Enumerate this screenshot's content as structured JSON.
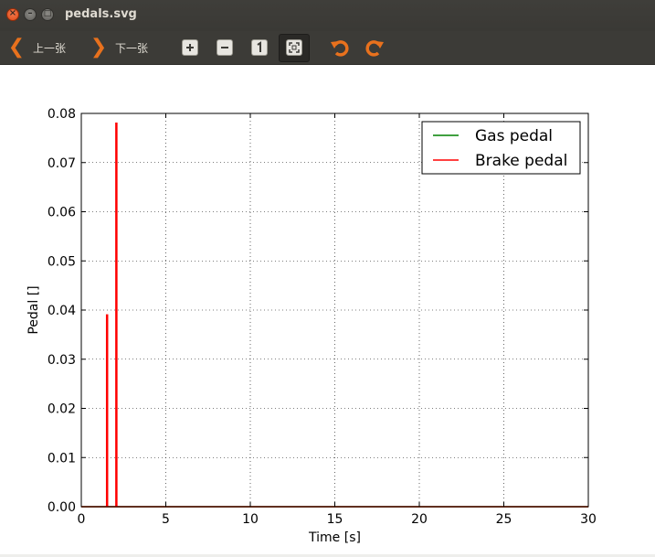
{
  "window": {
    "title": "pedals.svg",
    "close_glyph": "×",
    "minimize_glyph": "–",
    "maximize_glyph": "□"
  },
  "toolbar": {
    "prev_label": "上一张",
    "next_label": "下一张",
    "prev_icon": "chevron-left-icon",
    "next_icon": "chevron-right-icon",
    "buttons": [
      "zoom-in-icon",
      "zoom-out-icon",
      "original-size-icon",
      "best-fit-icon",
      "rotate-left-icon",
      "rotate-right-icon"
    ],
    "accent_color": "#e8711d"
  },
  "chart_data": {
    "type": "line",
    "xlabel": "Time [s]",
    "ylabel": "Pedal []",
    "xlim": [
      0,
      30
    ],
    "ylim": [
      0.0,
      0.08
    ],
    "x_ticks": [
      "0",
      "5",
      "10",
      "15",
      "20",
      "25",
      "30"
    ],
    "x_tick_values": [
      0,
      5,
      10,
      15,
      20,
      25,
      30
    ],
    "y_ticks": [
      "0.00",
      "0.01",
      "0.02",
      "0.03",
      "0.04",
      "0.05",
      "0.06",
      "0.07",
      "0.08"
    ],
    "y_tick_values": [
      0.0,
      0.01,
      0.02,
      0.03,
      0.04,
      0.05,
      0.06,
      0.07,
      0.08
    ],
    "grid": true,
    "legend_position": "top-right",
    "series": [
      {
        "name": "Gas pedal",
        "color": "#008000",
        "x": [
          0,
          30
        ],
        "y": [
          0.0,
          0.0
        ]
      },
      {
        "name": "Brake pedal",
        "color": "#ff0000",
        "x": [
          0,
          1.5,
          1.5,
          1.55,
          1.55,
          2.05,
          2.05,
          2.1,
          2.1,
          30
        ],
        "y": [
          0.0,
          0.0,
          0.039,
          0.039,
          0.0,
          0.0,
          0.078,
          0.078,
          0.0,
          0.0
        ]
      }
    ]
  }
}
